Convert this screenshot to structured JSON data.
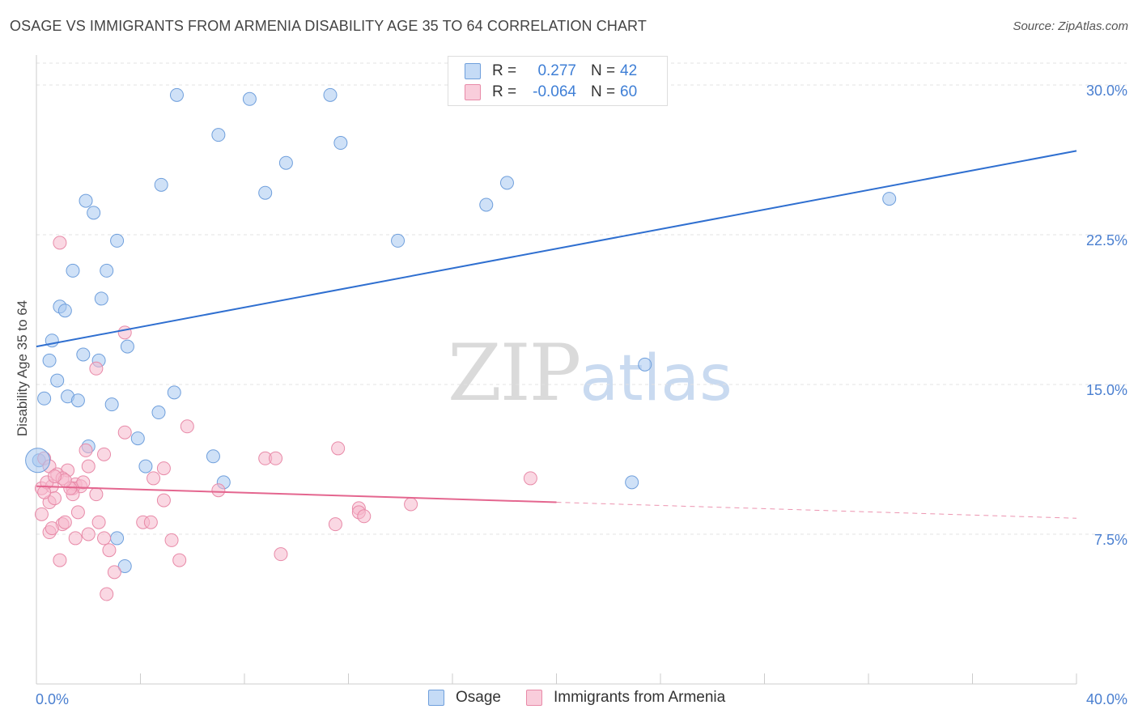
{
  "header": {
    "title": "OSAGE VS IMMIGRANTS FROM ARMENIA DISABILITY AGE 35 TO 64 CORRELATION CHART",
    "source": "Source: ZipAtlas.com"
  },
  "watermark": {
    "zip": "ZIP",
    "atlas": "atlas"
  },
  "legend": {
    "rows": [
      {
        "r_label": "R =",
        "r_value": "0.277",
        "n_label": "N =",
        "n_value": "42",
        "color": "#a8c8f0"
      },
      {
        "r_label": "R =",
        "r_value": "-0.064",
        "n_label": "N =",
        "n_value": "60",
        "color": "#f5b8cc"
      }
    ]
  },
  "chart_data": {
    "type": "scatter",
    "title": "OSAGE VS IMMIGRANTS FROM ARMENIA DISABILITY AGE 35 TO 64 CORRELATION CHART",
    "xlabel": "",
    "ylabel": "Disability Age 35 to 64",
    "xlim": [
      0,
      40
    ],
    "ylim": [
      0,
      31.5
    ],
    "x_tick_labels": [
      "0.0%",
      "40.0%"
    ],
    "y_ticks": [
      7.5,
      15.0,
      22.5,
      30.0
    ],
    "y_tick_labels": [
      "7.5%",
      "15.0%",
      "22.5%",
      "30.0%"
    ],
    "grid": "horizontal dashed",
    "legend_position": "top-center",
    "series": [
      {
        "name": "Osage",
        "color": "#a8c8f0",
        "stroke": "#6f9fdc",
        "trend_color": "#2f6fd0",
        "trend": {
          "x0": 0,
          "y0": 16.9,
          "x1": 40,
          "y1": 26.7,
          "solid_to": 40
        },
        "points": [
          [
            5.4,
            29.5
          ],
          [
            8.2,
            29.3
          ],
          [
            11.3,
            29.5
          ],
          [
            7.0,
            27.5
          ],
          [
            11.7,
            27.1
          ],
          [
            9.6,
            26.1
          ],
          [
            4.8,
            25.0
          ],
          [
            8.8,
            24.6
          ],
          [
            18.1,
            25.1
          ],
          [
            17.3,
            24.0
          ],
          [
            32.8,
            24.3
          ],
          [
            1.9,
            24.2
          ],
          [
            2.2,
            23.6
          ],
          [
            3.1,
            22.2
          ],
          [
            13.9,
            22.2
          ],
          [
            1.4,
            20.7
          ],
          [
            2.7,
            20.7
          ],
          [
            2.5,
            19.3
          ],
          [
            0.9,
            18.9
          ],
          [
            1.1,
            18.7
          ],
          [
            0.6,
            17.2
          ],
          [
            3.5,
            16.9
          ],
          [
            1.8,
            16.5
          ],
          [
            0.5,
            16.2
          ],
          [
            2.4,
            16.2
          ],
          [
            23.4,
            16.0
          ],
          [
            0.8,
            15.2
          ],
          [
            5.3,
            14.6
          ],
          [
            0.3,
            14.3
          ],
          [
            1.2,
            14.4
          ],
          [
            1.6,
            14.2
          ],
          [
            2.9,
            14.0
          ],
          [
            4.7,
            13.6
          ],
          [
            3.9,
            12.3
          ],
          [
            2.0,
            11.9
          ],
          [
            6.8,
            11.4
          ],
          [
            4.2,
            10.9
          ],
          [
            7.2,
            10.1
          ],
          [
            22.9,
            10.1
          ],
          [
            0.1,
            11.2
          ],
          [
            3.1,
            7.3
          ],
          [
            3.4,
            5.9
          ]
        ]
      },
      {
        "name": "Immigrants from Armenia",
        "color": "#f5b8cc",
        "stroke": "#e88aa8",
        "trend_color": "#e4668f",
        "trend": {
          "x0": 0,
          "y0": 9.9,
          "x1": 40,
          "y1": 8.3,
          "solid_to": 20
        },
        "points": [
          [
            0.9,
            22.1
          ],
          [
            3.4,
            17.6
          ],
          [
            2.3,
            15.8
          ],
          [
            5.8,
            12.9
          ],
          [
            3.4,
            12.6
          ],
          [
            11.6,
            11.8
          ],
          [
            1.9,
            11.7
          ],
          [
            2.6,
            11.5
          ],
          [
            8.8,
            11.3
          ],
          [
            9.2,
            11.3
          ],
          [
            0.3,
            11.3
          ],
          [
            0.5,
            10.9
          ],
          [
            2.0,
            10.9
          ],
          [
            4.9,
            10.8
          ],
          [
            1.2,
            10.7
          ],
          [
            0.8,
            10.5
          ],
          [
            1.0,
            10.3
          ],
          [
            4.5,
            10.3
          ],
          [
            19.0,
            10.3
          ],
          [
            1.5,
            10.0
          ],
          [
            0.2,
            9.8
          ],
          [
            0.6,
            9.9
          ],
          [
            1.4,
            9.8
          ],
          [
            1.7,
            9.9
          ],
          [
            2.3,
            9.5
          ],
          [
            1.4,
            9.5
          ],
          [
            0.5,
            9.1
          ],
          [
            7.0,
            9.7
          ],
          [
            0.7,
            9.3
          ],
          [
            4.9,
            9.2
          ],
          [
            14.4,
            9.0
          ],
          [
            0.2,
            8.5
          ],
          [
            1.6,
            8.6
          ],
          [
            12.4,
            8.8
          ],
          [
            12.4,
            8.6
          ],
          [
            12.6,
            8.4
          ],
          [
            1.0,
            8.0
          ],
          [
            1.1,
            8.1
          ],
          [
            2.4,
            8.1
          ],
          [
            4.1,
            8.1
          ],
          [
            4.4,
            8.1
          ],
          [
            11.5,
            8.0
          ],
          [
            0.5,
            7.6
          ],
          [
            1.5,
            7.3
          ],
          [
            2.0,
            7.5
          ],
          [
            2.6,
            7.3
          ],
          [
            5.2,
            7.2
          ],
          [
            2.8,
            6.7
          ],
          [
            9.4,
            6.5
          ],
          [
            0.9,
            6.2
          ],
          [
            5.5,
            6.2
          ],
          [
            3.0,
            5.6
          ],
          [
            2.7,
            4.5
          ],
          [
            0.6,
            7.8
          ],
          [
            1.3,
            9.8
          ],
          [
            0.4,
            10.1
          ],
          [
            0.3,
            9.6
          ],
          [
            1.1,
            10.2
          ],
          [
            1.8,
            10.1
          ],
          [
            0.7,
            10.4
          ]
        ]
      }
    ]
  }
}
